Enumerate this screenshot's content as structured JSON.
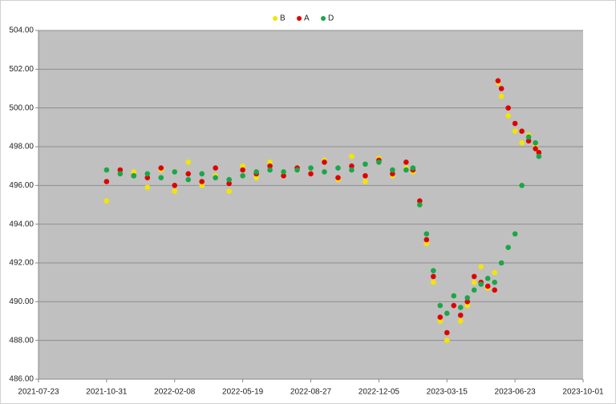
{
  "chart_data": {
    "type": "scatter",
    "xlim": [
      "2021-07-23",
      "2023-10-01"
    ],
    "xticks": [
      "2021-07-23",
      "2021-10-31",
      "2022-02-08",
      "2022-05-19",
      "2022-08-27",
      "2022-12-05",
      "2023-03-15",
      "2023-06-23",
      "2023-10-01"
    ],
    "ylim": [
      486,
      504
    ],
    "yticks": [
      {
        "value": 486,
        "label": "486.00"
      },
      {
        "value": 488,
        "label": "488.00"
      },
      {
        "value": 490,
        "label": "490.00"
      },
      {
        "value": 492,
        "label": "492.00"
      },
      {
        "value": 494,
        "label": "494.00"
      },
      {
        "value": 496,
        "label": "496.00"
      },
      {
        "value": 498,
        "label": "498.00"
      },
      {
        "value": 500,
        "label": "500.00"
      },
      {
        "value": 502,
        "label": "502.00"
      },
      {
        "value": 504,
        "label": "504.00"
      }
    ],
    "grid": true,
    "legend": "top",
    "series": [
      {
        "name": "B",
        "color": "#f2e600",
        "x": [
          "2021-10-31",
          "2021-11-20",
          "2021-12-10",
          "2021-12-30",
          "2022-01-19",
          "2022-02-08",
          "2022-02-28",
          "2022-03-20",
          "2022-04-09",
          "2022-04-29",
          "2022-05-19",
          "2022-06-08",
          "2022-06-28",
          "2022-07-18",
          "2022-08-07",
          "2022-08-27",
          "2022-09-16",
          "2022-10-06",
          "2022-10-26",
          "2022-11-15",
          "2022-12-05",
          "2022-12-25",
          "2023-01-14",
          "2023-01-24",
          "2023-02-03",
          "2023-02-13",
          "2023-02-23",
          "2023-03-05",
          "2023-03-15",
          "2023-03-25",
          "2023-04-04",
          "2023-04-14",
          "2023-04-24",
          "2023-05-04",
          "2023-05-14",
          "2023-05-24",
          "2023-05-29",
          "2023-06-03",
          "2023-06-13",
          "2023-06-23",
          "2023-07-03",
          "2023-07-13",
          "2023-07-23",
          "2023-07-28"
        ],
        "values": [
          495.2,
          496.6,
          496.7,
          495.9,
          496.8,
          495.7,
          497.2,
          496.0,
          496.5,
          495.7,
          497.0,
          496.4,
          497.2,
          496.6,
          496.8,
          496.6,
          497.3,
          496.3,
          497.5,
          496.2,
          497.4,
          496.5,
          496.9,
          496.7,
          495.0,
          493.0,
          491.0,
          489.0,
          488.0,
          490.3,
          489.0,
          489.8,
          491.0,
          491.8,
          490.7,
          491.5,
          501.3,
          500.6,
          499.6,
          498.8,
          498.2,
          498.6,
          498.0,
          497.7
        ]
      },
      {
        "name": "A",
        "color": "#e00000",
        "x": [
          "2021-10-31",
          "2021-11-20",
          "2021-12-10",
          "2021-12-30",
          "2022-01-19",
          "2022-02-08",
          "2022-02-28",
          "2022-03-20",
          "2022-04-09",
          "2022-04-29",
          "2022-05-19",
          "2022-06-08",
          "2022-06-28",
          "2022-07-18",
          "2022-08-07",
          "2022-08-27",
          "2022-09-16",
          "2022-10-06",
          "2022-10-26",
          "2022-11-15",
          "2022-12-05",
          "2022-12-25",
          "2023-01-14",
          "2023-01-24",
          "2023-02-03",
          "2023-02-13",
          "2023-02-23",
          "2023-03-05",
          "2023-03-15",
          "2023-03-25",
          "2023-04-04",
          "2023-04-14",
          "2023-04-24",
          "2023-05-04",
          "2023-05-14",
          "2023-05-24",
          "2023-05-29",
          "2023-06-03",
          "2023-06-13",
          "2023-06-23",
          "2023-07-03",
          "2023-07-13",
          "2023-07-23",
          "2023-07-28"
        ],
        "values": [
          496.2,
          496.8,
          496.5,
          496.4,
          496.9,
          496.0,
          496.6,
          496.2,
          496.9,
          496.1,
          496.8,
          496.6,
          497.0,
          496.5,
          496.9,
          496.6,
          497.2,
          496.4,
          497.0,
          496.5,
          497.3,
          496.6,
          497.2,
          496.8,
          495.2,
          493.2,
          491.3,
          489.2,
          488.4,
          489.8,
          489.3,
          490.0,
          491.3,
          491.0,
          490.8,
          490.6,
          501.4,
          501.0,
          500.0,
          499.2,
          498.8,
          498.3,
          497.9,
          497.7
        ]
      },
      {
        "name": "D",
        "color": "#1aa64a",
        "x": [
          "2021-10-31",
          "2021-11-20",
          "2021-12-10",
          "2021-12-30",
          "2022-01-19",
          "2022-02-08",
          "2022-02-28",
          "2022-03-20",
          "2022-04-09",
          "2022-04-29",
          "2022-05-19",
          "2022-06-08",
          "2022-06-28",
          "2022-07-18",
          "2022-08-07",
          "2022-08-27",
          "2022-09-16",
          "2022-10-06",
          "2022-10-26",
          "2022-11-15",
          "2022-12-05",
          "2022-12-25",
          "2023-01-14",
          "2023-01-24",
          "2023-02-03",
          "2023-02-13",
          "2023-02-23",
          "2023-03-05",
          "2023-03-15",
          "2023-03-25",
          "2023-04-04",
          "2023-04-14",
          "2023-04-24",
          "2023-05-04",
          "2023-05-14",
          "2023-05-24",
          "2023-06-03",
          "2023-06-13",
          "2023-06-23",
          "2023-07-03",
          "2023-07-13",
          "2023-07-23",
          "2023-07-28"
        ],
        "values": [
          496.8,
          496.6,
          496.5,
          496.6,
          496.4,
          496.7,
          496.3,
          496.6,
          496.4,
          496.3,
          496.5,
          496.7,
          496.8,
          496.7,
          496.8,
          496.9,
          496.7,
          496.9,
          496.8,
          497.1,
          497.2,
          496.8,
          496.8,
          496.9,
          495.0,
          493.5,
          491.6,
          489.8,
          489.4,
          490.3,
          489.7,
          490.2,
          490.6,
          490.9,
          491.2,
          491.0,
          492.0,
          492.8,
          493.5,
          496.0,
          498.5,
          498.2,
          497.5
        ]
      }
    ]
  }
}
